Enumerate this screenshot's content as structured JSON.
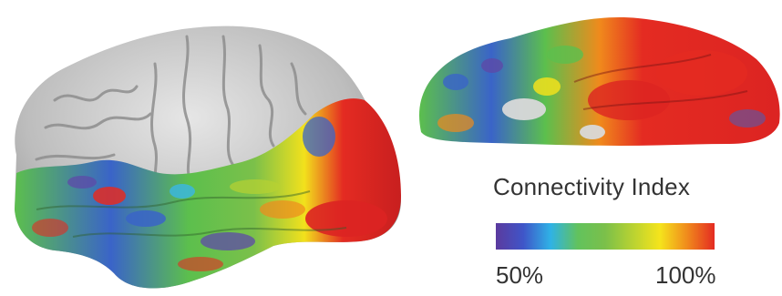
{
  "legend": {
    "title": "Connectivity Index",
    "min_label": "50%",
    "max_label": "100%",
    "colormap": [
      "#5b3a9e",
      "#3f55c8",
      "#2fb2e6",
      "#62c25d",
      "#7bc04a",
      "#b8d232",
      "#f5e41c",
      "#f08a1c",
      "#e42b22"
    ]
  },
  "palette": {
    "cortex_gray": "#c9c9c9",
    "cortex_shadow": "#8c8c8c",
    "purple": "#5d4aa8",
    "blue": "#3a64c8",
    "cyan": "#39b6e6",
    "green": "#5cbf4d",
    "yellow": "#f2e11c",
    "orange": "#f08a1c",
    "red": "#dc2422",
    "dark_red": "#b81a1a"
  }
}
